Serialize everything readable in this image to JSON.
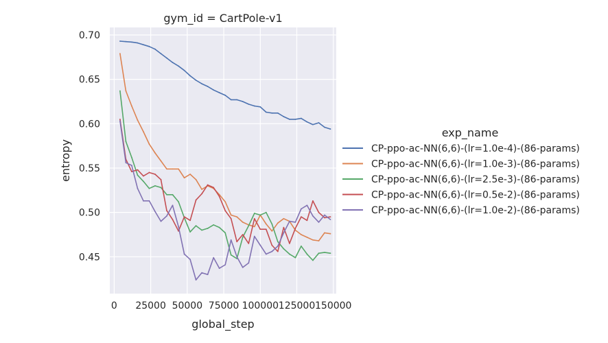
{
  "chart_data": {
    "type": "line",
    "title": "gym_id = CartPole-v1",
    "xlabel": "global_step",
    "ylabel": "entropy",
    "xlim": [
      -3000,
      152000
    ],
    "ylim": [
      0.4085,
      0.7085
    ],
    "xticks": [
      0,
      25000,
      50000,
      75000,
      100000,
      125000,
      150000
    ],
    "xtick_labels": [
      "0",
      "25000",
      "50000",
      "75000",
      "100000",
      "125000",
      "150000"
    ],
    "yticks": [
      0.45,
      0.5,
      0.55,
      0.6,
      0.65,
      0.7
    ],
    "ytick_labels": [
      "0.45",
      "0.50",
      "0.55",
      "0.60",
      "0.65",
      "0.70"
    ],
    "grid": true,
    "legend_title": "exp_name",
    "legend_position": "right",
    "x": [
      4000,
      8000,
      12000,
      16000,
      20000,
      24000,
      28000,
      32000,
      36000,
      40000,
      44000,
      48000,
      52000,
      56000,
      60000,
      64000,
      68000,
      72000,
      76000,
      80000,
      84000,
      88000,
      92000,
      96000,
      100000,
      104000,
      108000,
      112000,
      116000,
      120000,
      124000,
      128000,
      132000,
      136000,
      140000,
      144000,
      148000
    ],
    "series": [
      {
        "name": "CP-ppo-ac-NN(6,6)-(lr=1.0e-4)-(86-params)",
        "color": "#4c72b0",
        "values": [
          0.693,
          0.6925,
          0.692,
          0.691,
          0.689,
          0.687,
          0.684,
          0.679,
          0.674,
          0.669,
          0.665,
          0.66,
          0.654,
          0.649,
          0.645,
          0.642,
          0.638,
          0.635,
          0.632,
          0.627,
          0.627,
          0.625,
          0.622,
          0.62,
          0.619,
          0.613,
          0.612,
          0.612,
          0.608,
          0.605,
          0.605,
          0.606,
          0.602,
          0.599,
          0.601,
          0.596,
          0.594
        ]
      },
      {
        "name": "CP-ppo-ac-NN(6,6)-(lr=1.0e-3)-(86-params)",
        "color": "#dd8452",
        "values": [
          0.679,
          0.637,
          0.62,
          0.604,
          0.591,
          0.577,
          0.567,
          0.558,
          0.549,
          0.549,
          0.549,
          0.539,
          0.543,
          0.537,
          0.526,
          0.53,
          0.527,
          0.52,
          0.512,
          0.497,
          0.495,
          0.489,
          0.486,
          0.484,
          0.497,
          0.487,
          0.479,
          0.488,
          0.493,
          0.49,
          0.48,
          0.475,
          0.472,
          0.469,
          0.468,
          0.477,
          0.476
        ]
      },
      {
        "name": "CP-ppo-ac-NN(6,6)-(lr=2.5e-3)-(86-params)",
        "color": "#55a868",
        "values": [
          0.637,
          0.58,
          0.562,
          0.542,
          0.535,
          0.527,
          0.53,
          0.528,
          0.52,
          0.52,
          0.512,
          0.494,
          0.478,
          0.485,
          0.48,
          0.482,
          0.486,
          0.483,
          0.477,
          0.452,
          0.448,
          0.472,
          0.485,
          0.499,
          0.497,
          0.5,
          0.487,
          0.467,
          0.459,
          0.453,
          0.449,
          0.462,
          0.453,
          0.446,
          0.454,
          0.455,
          0.454
        ]
      },
      {
        "name": "CP-ppo-ac-NN(6,6)-(lr=0.5e-2)-(86-params)",
        "color": "#c44e52",
        "values": [
          0.605,
          0.56,
          0.546,
          0.548,
          0.541,
          0.545,
          0.543,
          0.537,
          0.502,
          0.492,
          0.479,
          0.495,
          0.491,
          0.514,
          0.521,
          0.531,
          0.528,
          0.518,
          0.502,
          0.493,
          0.467,
          0.475,
          0.465,
          0.493,
          0.481,
          0.481,
          0.463,
          0.456,
          0.483,
          0.465,
          0.482,
          0.495,
          0.491,
          0.513,
          0.5,
          0.494,
          0.495
        ]
      },
      {
        "name": "CP-ppo-ac-NN(6,6)-(lr=1.0e-2)-(86-params)",
        "color": "#8172b3",
        "values": [
          0.603,
          0.556,
          0.553,
          0.527,
          0.513,
          0.513,
          0.501,
          0.49,
          0.496,
          0.508,
          0.484,
          0.453,
          0.447,
          0.424,
          0.432,
          0.43,
          0.449,
          0.437,
          0.441,
          0.469,
          0.45,
          0.438,
          0.443,
          0.473,
          0.463,
          0.453,
          0.456,
          0.462,
          0.477,
          0.49,
          0.489,
          0.504,
          0.508,
          0.496,
          0.489,
          0.497,
          0.492
        ]
      }
    ]
  }
}
